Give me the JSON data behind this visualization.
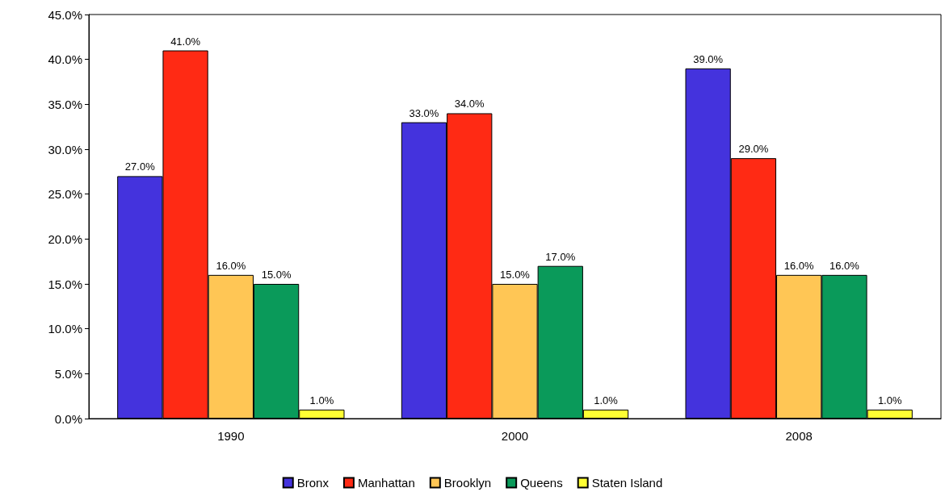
{
  "chart_data": {
    "type": "bar",
    "categories": [
      "1990",
      "2000",
      "2008"
    ],
    "series": [
      {
        "name": "Bronx",
        "color": "#4433dd",
        "values": [
          27,
          33,
          39
        ],
        "value_labels": [
          "27.0%",
          "33.0%",
          "39.0%"
        ]
      },
      {
        "name": "Manhattan",
        "color": "#ff2a14",
        "values": [
          41,
          34,
          29
        ],
        "value_labels": [
          "41.0%",
          "34.0%",
          "29.0%"
        ]
      },
      {
        "name": "Brooklyn",
        "color": "#ffc655",
        "values": [
          16,
          15,
          16
        ],
        "value_labels": [
          "16.0%",
          "15.0%",
          "16.0%"
        ]
      },
      {
        "name": "Queens",
        "color": "#0a9a5a",
        "values": [
          15,
          17,
          16
        ],
        "value_labels": [
          "15.0%",
          "17.0%",
          "16.0%"
        ]
      },
      {
        "name": "Staten Island",
        "color": "#ffff33",
        "values": [
          1,
          1,
          1
        ],
        "value_labels": [
          "1.0%",
          "1.0%",
          "1.0%"
        ]
      }
    ],
    "ylim": [
      0,
      45
    ],
    "yticks": [
      {
        "value": 0,
        "label": "0.0%"
      },
      {
        "value": 5,
        "label": "5.0%"
      },
      {
        "value": 10,
        "label": "10.0%"
      },
      {
        "value": 15,
        "label": "15.0%"
      },
      {
        "value": 20,
        "label": "20.0%"
      },
      {
        "value": 25,
        "label": "25.0%"
      },
      {
        "value": 30,
        "label": "30.0%"
      },
      {
        "value": 35,
        "label": "35.0%"
      },
      {
        "value": 40,
        "label": "40.0%"
      },
      {
        "value": 45,
        "label": "45.0%"
      }
    ],
    "grid": false,
    "legend": "bottom"
  }
}
